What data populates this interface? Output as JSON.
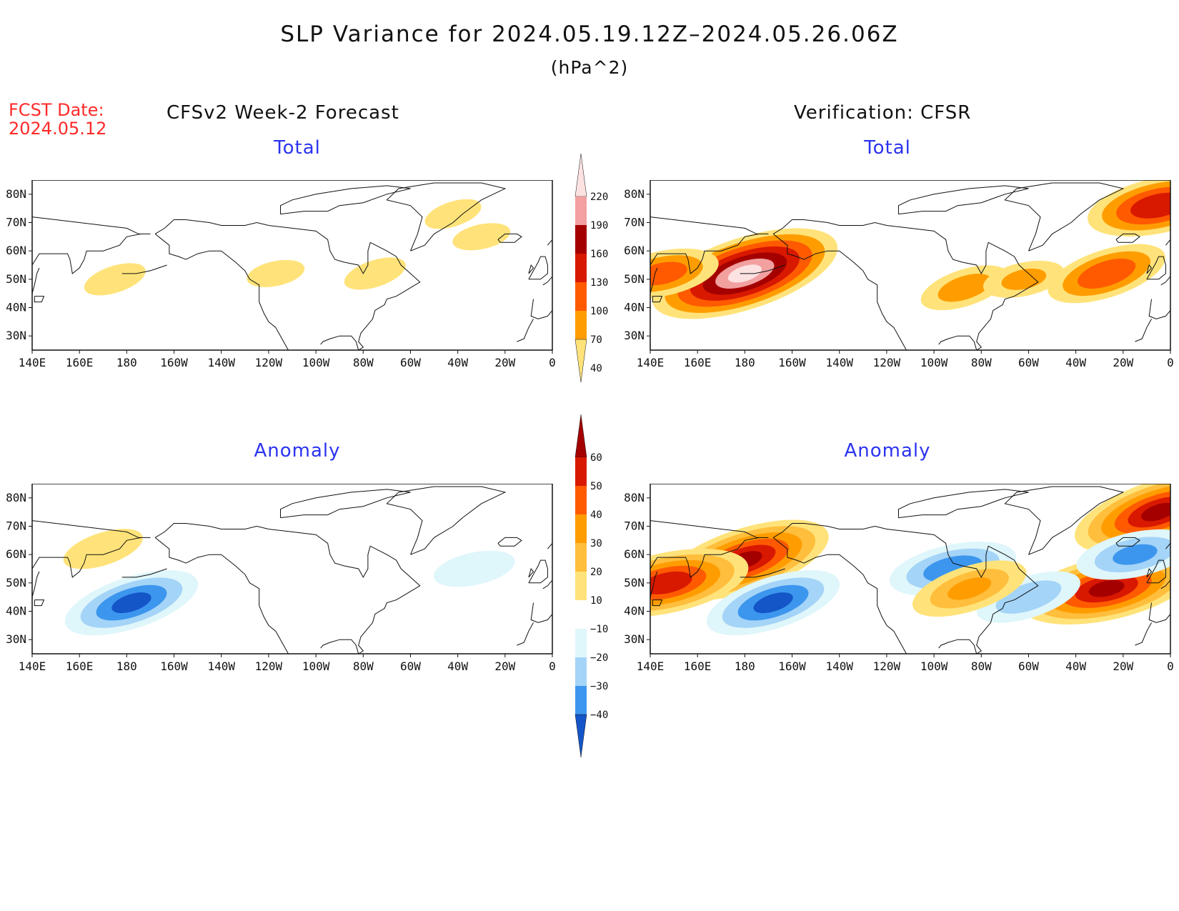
{
  "header": {
    "title": "SLP Variance for 2024.05.19.12Z–2024.05.26.06Z",
    "units": "(hPa^2)",
    "fcst_date_label": "FCST Date:",
    "fcst_date_value": "2024.05.12",
    "forecast_heading": "CFSv2 Week-2 Forecast",
    "verification_heading": "Verification: CFSR"
  },
  "axes": {
    "lat_labels": [
      "80N",
      "70N",
      "60N",
      "50N",
      "40N",
      "30N"
    ],
    "lat_values": [
      80,
      70,
      60,
      50,
      40,
      30
    ],
    "lat_range": [
      25,
      85
    ],
    "lon_labels": [
      "140E",
      "160E",
      "180",
      "160W",
      "140W",
      "120W",
      "100W",
      "80W",
      "60W",
      "40W",
      "20W",
      "0"
    ],
    "lon_range_east_deg": [
      140,
      360
    ]
  },
  "panels": {
    "fcst_total": {
      "title": "Total"
    },
    "verif_total": {
      "title": "Total"
    },
    "fcst_anom": {
      "title": "Anomaly"
    },
    "verif_anom": {
      "title": "Anomaly"
    }
  },
  "colorbars": {
    "total": {
      "labels": [
        "220",
        "190",
        "160",
        "130",
        "100",
        "70",
        "40"
      ],
      "colors": [
        "#fde2e2",
        "#f2a0a0",
        "#a50000",
        "#d91800",
        "#ff5a00",
        "#ff9d00",
        "#ffe37a"
      ]
    },
    "anomaly": {
      "labels": [
        "60",
        "50",
        "40",
        "30",
        "20",
        "10",
        "−10",
        "−20",
        "−30",
        "−40"
      ],
      "colors": [
        "#a50000",
        "#d91800",
        "#ff5a00",
        "#ff9d00",
        "#ffbe3c",
        "#ffe37a",
        "#ffffff",
        "#dff6fb",
        "#a4d4f7",
        "#3c96ee",
        "#1455c8"
      ]
    }
  },
  "chart_data": {
    "type": "heatmap",
    "field": "SLP variance",
    "units": "hPa^2",
    "total_levels": [
      40,
      70,
      100,
      130,
      160,
      190,
      220
    ],
    "anomaly_levels": [
      -40,
      -30,
      -20,
      -10,
      10,
      20,
      30,
      40,
      50,
      60
    ],
    "fcst_total_features": [
      {
        "lon": 175,
        "lat": 50,
        "value": 50
      },
      {
        "lon": 243,
        "lat": 52,
        "value": 45
      },
      {
        "lon": 285,
        "lat": 52,
        "value": 50
      },
      {
        "lon": 330,
        "lat": 65,
        "value": 45
      },
      {
        "lon": 318,
        "lat": 73,
        "value": 45
      }
    ],
    "verif_total_features": [
      {
        "lon": 180,
        "lat": 52,
        "value": 220
      },
      {
        "lon": 145,
        "lat": 52,
        "value": 110
      },
      {
        "lon": 333,
        "lat": 52,
        "value": 120
      },
      {
        "lon": 355,
        "lat": 76,
        "value": 150
      },
      {
        "lon": 273,
        "lat": 47,
        "value": 80
      },
      {
        "lon": 298,
        "lat": 50,
        "value": 70
      }
    ],
    "fcst_anom_features": [
      {
        "lon": 182,
        "lat": 43,
        "value": -40
      },
      {
        "lon": 327,
        "lat": 55,
        "value": -15
      },
      {
        "lon": 170,
        "lat": 62,
        "value": 15
      }
    ],
    "verif_anom_features": [
      {
        "lon": 180,
        "lat": 58,
        "value": 60
      },
      {
        "lon": 147,
        "lat": 50,
        "value": 55
      },
      {
        "lon": 192,
        "lat": 43,
        "value": -40
      },
      {
        "lon": 333,
        "lat": 48,
        "value": 60
      },
      {
        "lon": 355,
        "lat": 75,
        "value": 60
      },
      {
        "lon": 268,
        "lat": 55,
        "value": -35
      },
      {
        "lon": 300,
        "lat": 45,
        "value": -25
      },
      {
        "lon": 345,
        "lat": 60,
        "value": -30
      },
      {
        "lon": 275,
        "lat": 48,
        "value": 30
      }
    ]
  }
}
